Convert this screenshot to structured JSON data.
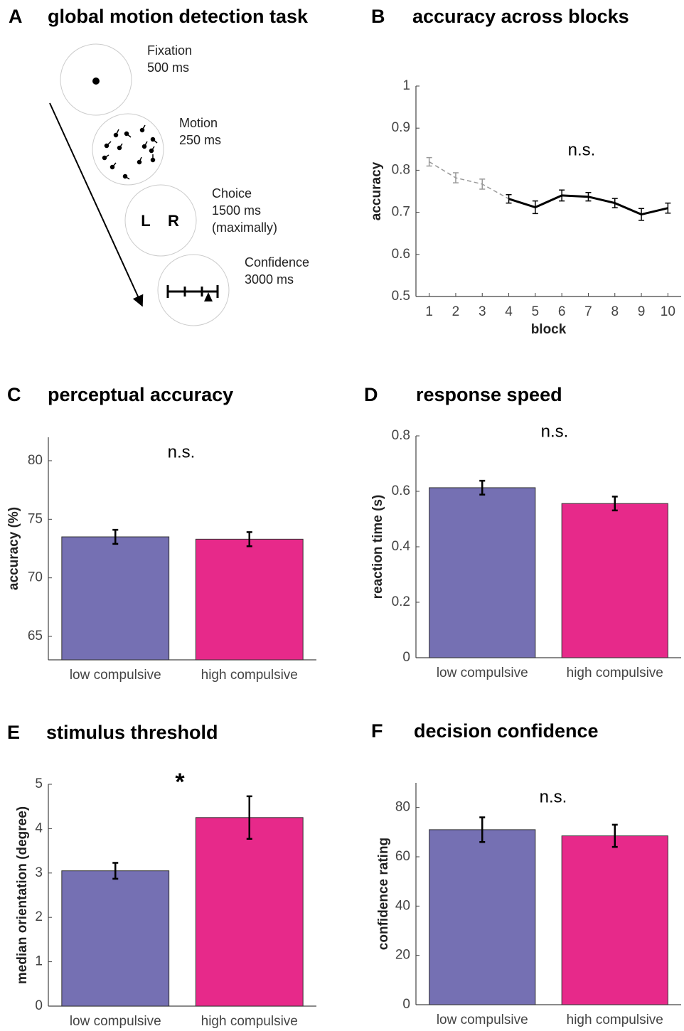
{
  "task_diagram": {
    "panel": "A",
    "title": "global motion detection task",
    "steps": [
      {
        "name": "Fixation",
        "lines": [
          "500 ms"
        ]
      },
      {
        "name": "Motion",
        "lines": [
          "250 ms"
        ]
      },
      {
        "name": "Choice",
        "lines": [
          "1500 ms",
          "(maximally)"
        ]
      },
      {
        "name": "Confidence",
        "lines": [
          "3000 ms"
        ]
      }
    ],
    "choice_keys": [
      "L",
      "R"
    ]
  },
  "chart_data": [
    {
      "type": "line",
      "panel": "B",
      "title": "accuracy across blocks",
      "x_label": "block",
      "y_label": "accuracy",
      "annotation": "n.s.",
      "x": [
        1,
        2,
        3,
        4,
        5,
        6,
        7,
        8,
        9,
        10
      ],
      "xlim": [
        0.5,
        10.5
      ],
      "xticks": [
        1,
        2,
        3,
        4,
        5,
        6,
        7,
        8,
        9,
        10
      ],
      "ylim": [
        0.5,
        1
      ],
      "yticks": [
        0.5,
        0.6,
        0.7,
        0.8,
        0.9,
        1
      ],
      "series": [
        {
          "color": "#999999",
          "dashed": true,
          "values": [
            0.82,
            0.782,
            0.767,
            0.732,
            null,
            null,
            null,
            null,
            null,
            null
          ],
          "errors": [
            0.01,
            0.012,
            0.012,
            null,
            null,
            null,
            null,
            null,
            null,
            null
          ]
        },
        {
          "color": "#000000",
          "dashed": false,
          "values": [
            null,
            null,
            null,
            0.732,
            0.712,
            0.74,
            0.737,
            0.722,
            0.695,
            0.71
          ],
          "errors": [
            null,
            null,
            null,
            0.01,
            0.015,
            0.013,
            0.01,
            0.011,
            0.014,
            0.012
          ]
        }
      ]
    },
    {
      "type": "bar",
      "panel": "C",
      "title": "perceptual accuracy",
      "y_label": "accuracy (%)",
      "annotation": "n.s.",
      "categories": [
        "low compulsive",
        "high compulsive"
      ],
      "values": [
        73.5,
        73.3
      ],
      "errors": [
        0.6,
        0.6
      ],
      "colors": [
        "#7570b3",
        "#e7298a"
      ],
      "ylim": [
        63,
        82
      ],
      "yticks": [
        65,
        70,
        75,
        80
      ]
    },
    {
      "type": "bar",
      "panel": "D",
      "title": "response speed",
      "y_label": "reaction time (s)",
      "annotation": "n.s.",
      "categories": [
        "low compulsive",
        "high compulsive"
      ],
      "values": [
        0.613,
        0.556
      ],
      "errors": [
        0.025,
        0.025
      ],
      "colors": [
        "#7570b3",
        "#e7298a"
      ],
      "ylim": [
        0,
        0.8
      ],
      "yticks": [
        0,
        0.2,
        0.4,
        0.6,
        0.8
      ]
    },
    {
      "type": "bar",
      "panel": "E",
      "title": "stimulus threshold",
      "y_label": "median orientation (degree)",
      "annotation": "*",
      "categories": [
        "low compulsive",
        "high compulsive"
      ],
      "values": [
        3.05,
        4.25
      ],
      "errors": [
        0.18,
        0.48
      ],
      "colors": [
        "#7570b3",
        "#e7298a"
      ],
      "ylim": [
        0,
        5
      ],
      "yticks": [
        0,
        1,
        2,
        3,
        4,
        5
      ]
    },
    {
      "type": "bar",
      "panel": "F",
      "title": "decision confidence",
      "y_label": "confidence rating",
      "annotation": "n.s.",
      "categories": [
        "low compulsive",
        "high compulsive"
      ],
      "values": [
        71,
        68.5
      ],
      "errors": [
        5,
        4.5
      ],
      "colors": [
        "#7570b3",
        "#e7298a"
      ],
      "ylim": [
        0,
        90
      ],
      "yticks": [
        0,
        20,
        40,
        60,
        80
      ]
    }
  ]
}
